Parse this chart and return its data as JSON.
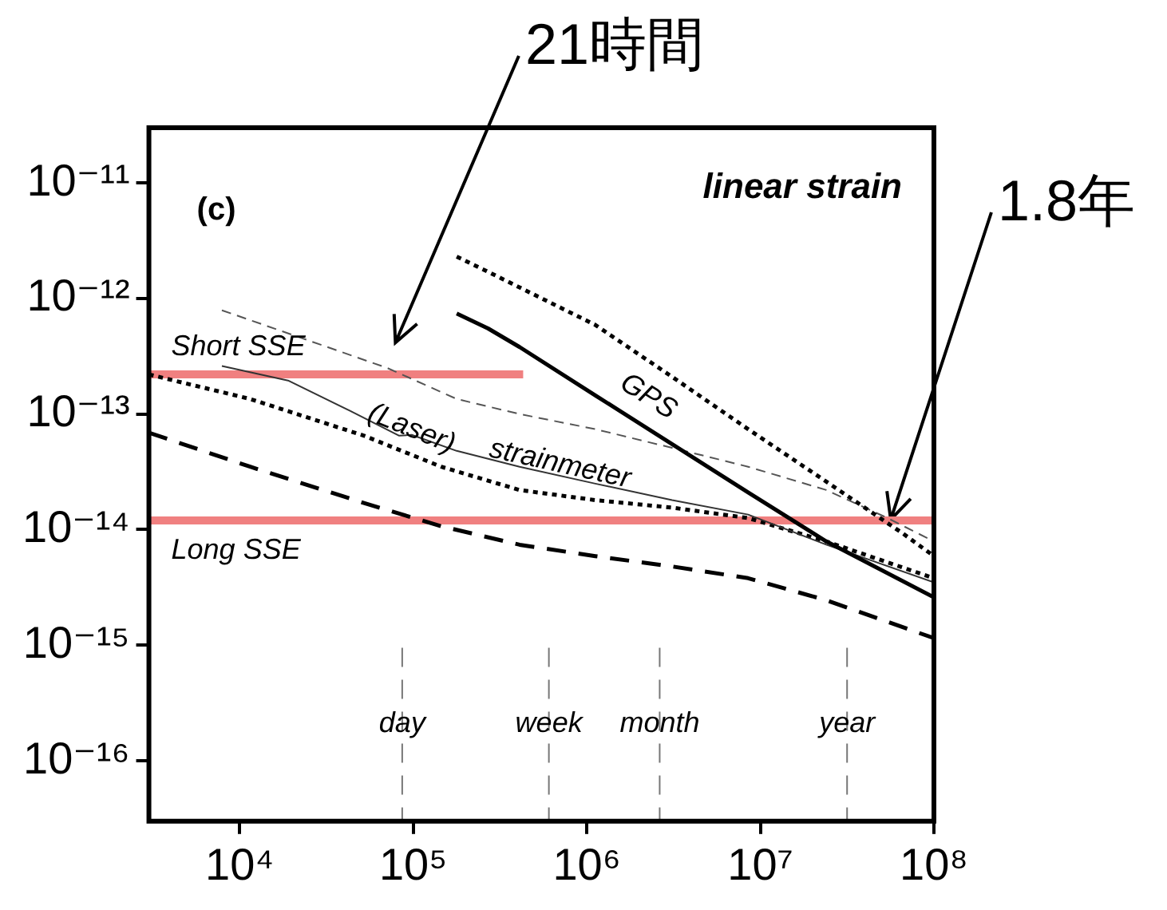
{
  "chart_data": {
    "type": "line",
    "log": "xy",
    "legend": false,
    "grid": false,
    "xlim": [
      3000,
      100000000.0
    ],
    "ylim": [
      3e-17,
      3e-11
    ],
    "xticks": [
      {
        "value": 10000.0,
        "label": "10⁴"
      },
      {
        "value": 100000.0,
        "label": "10⁵"
      },
      {
        "value": 1000000.0,
        "label": "10⁶"
      },
      {
        "value": 10000000.0,
        "label": "10⁷"
      },
      {
        "value": 100000000.0,
        "label": "10⁸"
      }
    ],
    "yticks": [
      {
        "value": 1e-16,
        "label": "10⁻¹⁶"
      },
      {
        "value": 1e-15,
        "label": "10⁻¹⁵"
      },
      {
        "value": 1e-14,
        "label": "10⁻¹⁴"
      },
      {
        "value": 1e-13,
        "label": "10⁻¹³"
      },
      {
        "value": 1e-12,
        "label": "10⁻¹²"
      },
      {
        "value": 1e-11,
        "label": "10⁻¹¹"
      }
    ],
    "series": [
      {
        "color": "#000000",
        "line_style": "dotted",
        "x": [
          178000.0,
          270000.0,
          1120000.0,
          3100000.0,
          8500000.0,
          24000000.0,
          66000000.0,
          100000000.0
        ],
        "values": [
          2.3e-12,
          1.7e-12,
          5.9e-13,
          2.1e-13,
          7.4e-14,
          2.6e-14,
          9.3e-15,
          5.9e-15
        ]
      },
      {
        "name": "GPS",
        "color": "#000000",
        "line_style": "solid",
        "x": [
          178000.0,
          270000.0,
          410000.0,
          1120000.0,
          3100000.0,
          8500000.0,
          24000000.0,
          100000000.0
        ],
        "values": [
          7.4e-13,
          5.5e-13,
          3.8e-13,
          1.45e-13,
          5.5e-14,
          2.1e-14,
          7.9e-15,
          2.6e-15
        ]
      },
      {
        "color": "#555555",
        "line_style": "dashed",
        "x": [
          7900.0,
          32000.0,
          71000.0,
          178000.0,
          410000.0,
          1120000.0,
          3100000.0,
          8500000.0,
          24000000.0,
          54000000.0,
          100000000.0
        ],
        "values": [
          7.9e-13,
          3.8e-13,
          2.5e-13,
          1.35e-13,
          1e-13,
          7.4e-14,
          5.1e-14,
          3.5e-14,
          2.2e-14,
          1.26e-14,
          7.9e-15
        ]
      },
      {
        "name": "strainmeter",
        "color": "#333333",
        "line_style": "solid",
        "x": [
          7900.0,
          19000.0,
          43000.0,
          83000.0,
          98000.0,
          178000.0,
          410000.0,
          1120000.0,
          3100000.0,
          8500000.0,
          24000000.0,
          100000000.0
        ],
        "values": [
          2.6e-13,
          1.95e-13,
          1.07e-13,
          6.5e-14,
          6.6e-14,
          4.8e-14,
          3.5e-14,
          2.5e-14,
          1.8e-14,
          1.35e-14,
          7.4e-15,
          3.5e-15
        ]
      },
      {
        "name": "(Laser)",
        "color": "#000000",
        "line_style": "dotted",
        "x": [
          3000.0,
          11500.0,
          52000.0,
          145000.0,
          410000.0,
          1120000.0,
          3100000.0,
          8500000.0,
          24000000.0,
          100000000.0
        ],
        "values": [
          2.2e-13,
          1.35e-13,
          6.5e-14,
          3.5e-14,
          2.2e-14,
          1.8e-14,
          1.55e-14,
          1.26e-14,
          7.9e-15,
          3.8e-15
        ]
      },
      {
        "color": "#000000",
        "line_style": "dashed",
        "x": [
          3000.0,
          11500.0,
          52000.0,
          145000.0,
          410000.0,
          1120000.0,
          3100000.0,
          8500000.0,
          24000000.0,
          100000000.0
        ],
        "values": [
          6.9e-14,
          3.5e-14,
          1.7e-14,
          1.07e-14,
          7.4e-15,
          5.9e-15,
          4.8e-15,
          3.8e-15,
          2.45e-15,
          1.15e-15
        ]
      },
      {
        "color": "#f08080",
        "line_style": "solid",
        "x": [
          3000,
          430000.0
        ],
        "values": [
          2.2e-13,
          2.2e-13
        ]
      },
      {
        "color": "#f08080",
        "line_style": "solid",
        "x": [
          3000,
          100000000.0
        ],
        "values": [
          1.2e-14,
          1.2e-14
        ]
      }
    ],
    "ref_lines": [
      {
        "axis": "x",
        "value": 86400,
        "label": "day",
        "color": "#777777",
        "line_style": "dashed"
      },
      {
        "axis": "x",
        "value": 604800,
        "label": "week",
        "color": "#777777",
        "line_style": "dashed"
      },
      {
        "axis": "x",
        "value": 2630000,
        "label": "month",
        "color": "#777777",
        "line_style": "dashed"
      },
      {
        "axis": "x",
        "value": 31600000,
        "label": "year",
        "color": "#777777",
        "line_style": "dashed"
      }
    ],
    "annotations": [
      "(c)",
      "linear strain",
      "21時間",
      "1.8年",
      "Short SSE",
      "Long SSE"
    ]
  }
}
